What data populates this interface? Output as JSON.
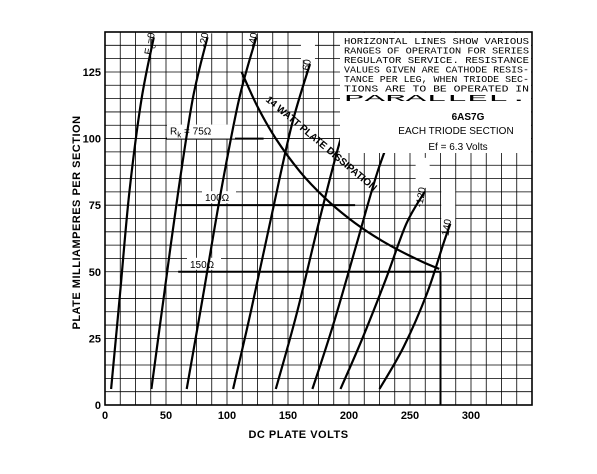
{
  "chart_data": {
    "type": "line",
    "xlabel": "DC PLATE VOLTS",
    "ylabel": "PLATE MILLIAMPERES PER SECTION",
    "xlim": [
      0,
      350
    ],
    "ylim": [
      0,
      140
    ],
    "x_ticks": [
      "0",
      "50",
      "100",
      "150",
      "200",
      "250",
      "300"
    ],
    "y_ticks": [
      "0",
      "25",
      "50",
      "75",
      "100",
      "125"
    ],
    "grid": true,
    "note_lines": [
      "HORIZONTAL LINES SHOW VARIOUS",
      "RANGES OF OPERATION FOR SERIES",
      "REGULATOR SERVICE. RESISTANCE",
      "VALUES GIVEN ARE CATHODE RESIS-",
      "TANCE PER LEG, WHEN TRIODE SEC-",
      "TIONS ARE TO BE OPERATED IN",
      "PARALLEL."
    ],
    "tube": "6AS7G",
    "section": "EACH TRIODE SECTION",
    "heater": "Ef = 6.3 Volts",
    "dissipation_label": "14 WATT PLATE DISSIPATION",
    "series": [
      {
        "name": "Ec=0",
        "x": [
          5,
          12,
          20,
          30,
          40
        ],
        "y": [
          6,
          40,
          80,
          115,
          138
        ]
      },
      {
        "name": "-20",
        "x": [
          38,
          48,
          60,
          72,
          84
        ],
        "y": [
          6,
          40,
          80,
          115,
          138
        ]
      },
      {
        "name": "-40",
        "x": [
          67,
          80,
          95,
          110,
          124
        ],
        "y": [
          6,
          40,
          80,
          115,
          138
        ]
      },
      {
        "name": "-60",
        "x": [
          105,
          120,
          137,
          153,
          168
        ],
        "y": [
          6,
          36,
          72,
          105,
          128
        ]
      },
      {
        "name": "-80",
        "x": [
          140,
          157,
          175,
          192,
          206
        ],
        "y": [
          6,
          34,
          68,
          98,
          118
        ]
      },
      {
        "name": "-100",
        "x": [
          170,
          187,
          206,
          223,
          239
        ],
        "y": [
          6,
          30,
          60,
          87,
          107
        ]
      },
      {
        "name": "-120",
        "x": [
          193,
          211,
          230,
          247,
          262
        ],
        "y": [
          6,
          25,
          47,
          68,
          80
        ]
      },
      {
        "name": "-140",
        "x": [
          225,
          245,
          264,
          277,
          283
        ],
        "y": [
          6,
          22,
          42,
          60,
          68
        ]
      }
    ],
    "dissipation_curve": {
      "x": [
        112,
        125,
        140,
        160,
        180,
        200,
        220,
        240,
        260,
        274
      ],
      "y": [
        125,
        112,
        100,
        87.5,
        77.8,
        70,
        63.6,
        58.3,
        53.8,
        51.1
      ]
    },
    "operating_lines": [
      {
        "name": "Rk = 75Ω",
        "label": "75Ω",
        "rk_prefix": "R",
        "rk_sub": "k",
        "eq": "=",
        "y": 100,
        "x": [
          50,
          130
        ]
      },
      {
        "name": "100Ω",
        "label": "100Ω",
        "y": 75,
        "x": [
          60,
          205
        ]
      },
      {
        "name": "150Ω",
        "label": "150Ω",
        "y": 50,
        "x": [
          60,
          275
        ]
      }
    ],
    "end_marker": {
      "x": 275,
      "y": [
        0,
        50
      ]
    }
  }
}
